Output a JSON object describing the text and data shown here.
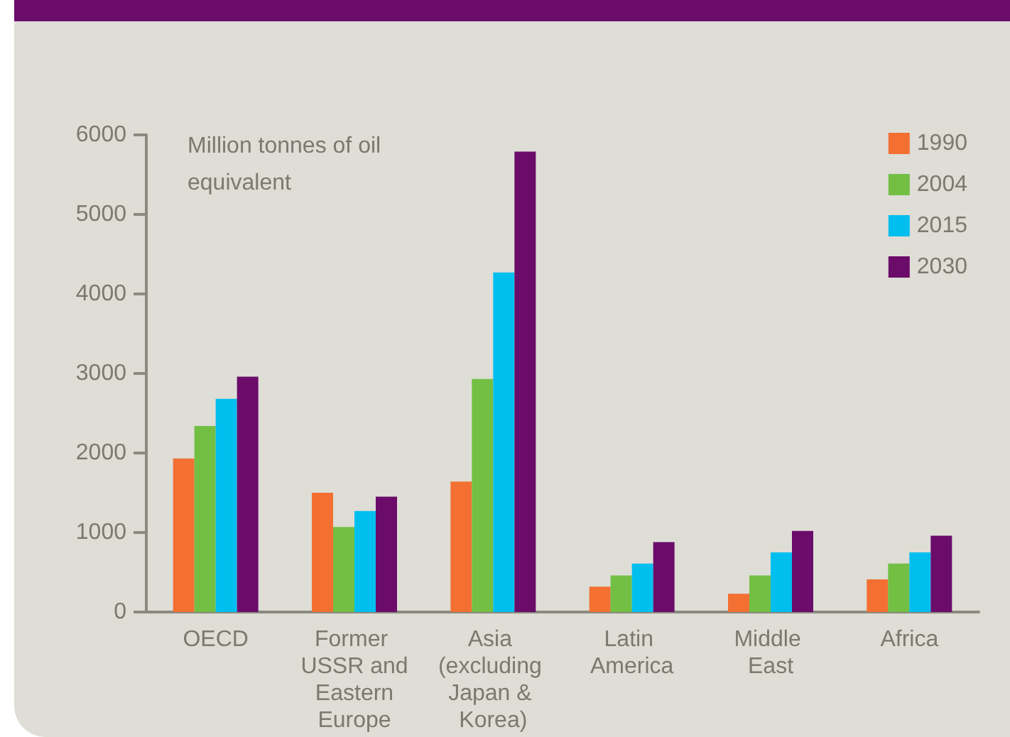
{
  "chart_data": {
    "type": "bar",
    "ylabel": "Million tonnes of oil equivalent",
    "categories": [
      "OECD",
      "Former USSR and Eastern Europe",
      "Asia (excluding Japan & Korea)",
      "Latin America",
      "Middle East",
      "Africa"
    ],
    "series": [
      {
        "name": "1990",
        "color": "#f37032",
        "values": [
          1930,
          1500,
          1640,
          320,
          230,
          410
        ]
      },
      {
        "name": "2004",
        "color": "#72bf44",
        "values": [
          2340,
          1070,
          2930,
          460,
          460,
          610
        ]
      },
      {
        "name": "2015",
        "color": "#00bfef",
        "values": [
          2680,
          1270,
          4270,
          610,
          750,
          750
        ]
      },
      {
        "name": "2030",
        "color": "#6b0c6b",
        "values": [
          2960,
          1450,
          5790,
          880,
          1020,
          960
        ]
      }
    ],
    "ylim": [
      0,
      6000
    ],
    "yticks": [
      0,
      1000,
      2000,
      3000,
      4000,
      5000,
      6000
    ],
    "grid": false,
    "legend": "top right"
  }
}
